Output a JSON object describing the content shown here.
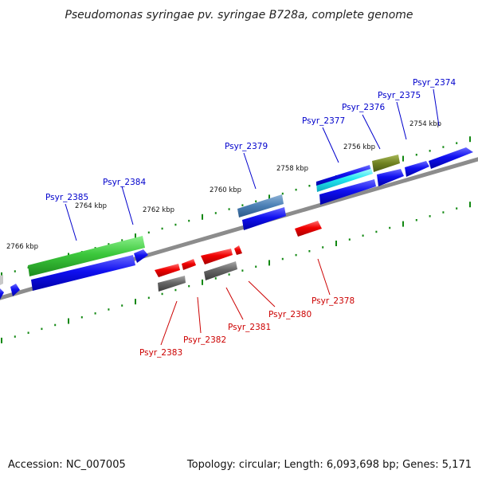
{
  "title": "Pseudomonas syringae pv. syringae B728a, complete genome",
  "footer": {
    "accession": "Accession: NC_007005",
    "summary": "Topology: circular; Length: 6,093,698 bp; Genes: 5,171"
  },
  "scale_labels": [
    "2754 kbp",
    "2756 kbp",
    "2758 kbp",
    "2760 kbp",
    "2762 kbp",
    "2764 kbp",
    "2766 kbp"
  ],
  "genes_top": [
    "Psyr_2374",
    "Psyr_2375",
    "Psyr_2376",
    "Psyr_2377",
    "Psyr_2379",
    "Psyr_2384",
    "Psyr_2385"
  ],
  "genes_bottom": [
    "Psyr_2378",
    "Psyr_2380",
    "Psyr_2381",
    "Psyr_2382",
    "Psyr_2383"
  ],
  "colors": {
    "forward_label": "#0000cc",
    "reverse_label": "#cc0000",
    "forward_gene": "#0000ee",
    "reverse_gene": "#ee0000",
    "tick": "#118811",
    "backbone": "#8c8c8c"
  }
}
